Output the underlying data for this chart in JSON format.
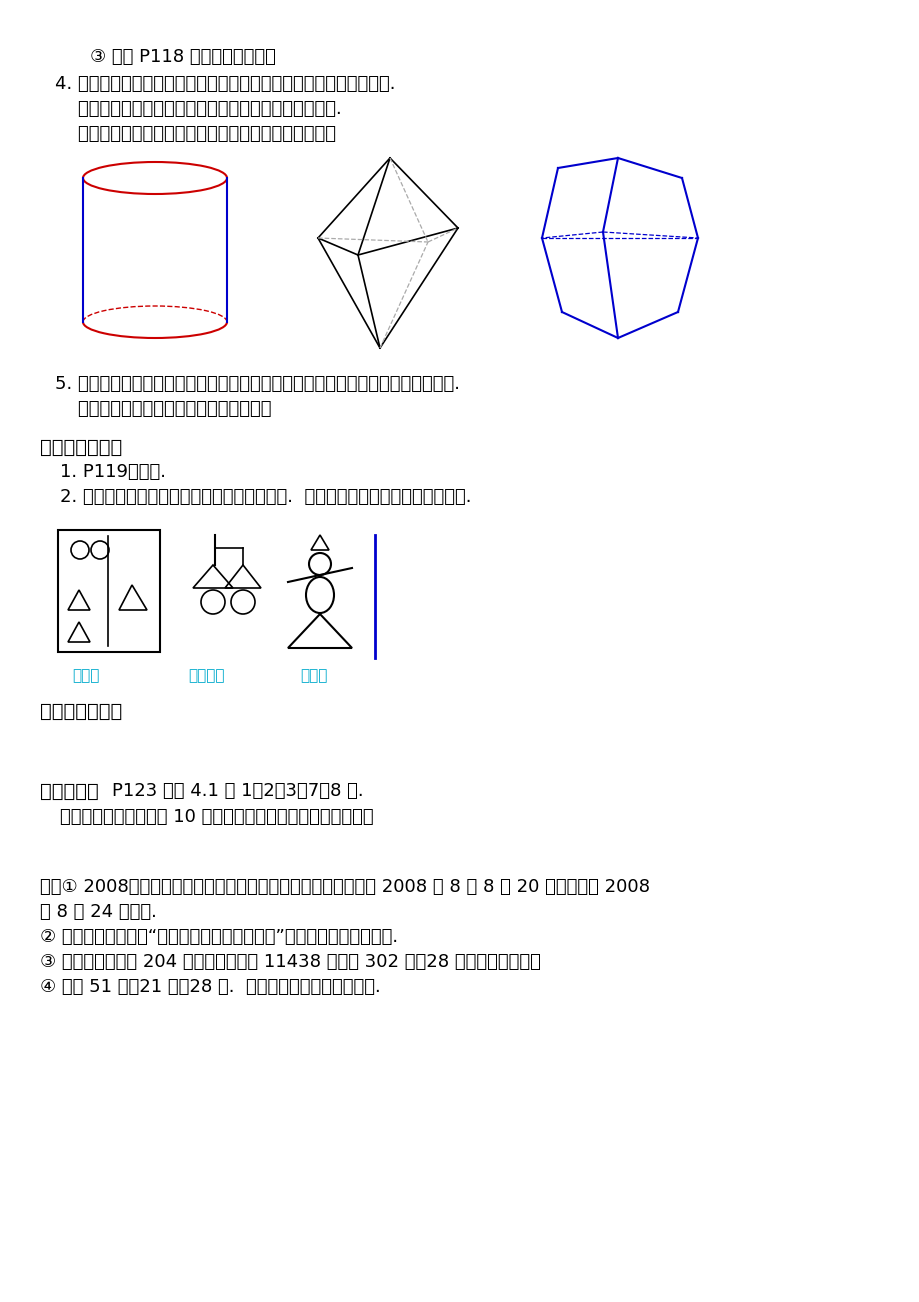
{
  "bg_color": "#ffffff",
  "text_color": "#000000",
  "blue_color": "#0000CD",
  "cyan_label_color": "#00AACC",
  "red_color": "#CC0000",
  "line1": "③ 完成 P118 思考的问题（下）",
  "line2": "4. 立体图形与平面图形是两类不同的几何图形，但他们是互相联系的.",
  "line3": "    任何一个立体图形图形是由一个或几个平面图形围成的.",
  "line4": "    看看下面的几个立体图形是由怎样的平面图形围成的？",
  "line5": "5. 下面都是生活中的物体：粉笔盒、茶杯、文具盒、砖、铅垃仪、乒乒球、黑板面.",
  "line6": "    你能说出类似于这些物体的几何图形吗？",
  "section3": "三、知识应用：",
  "s3_1": "1. P119练习题.",
  "s3_2": "2. 用两条线段、两个三角形、两个圆拼成图案.  试着画几个，并取一个恰当的名字.",
  "section4": "四、学习小结：",
  "section5_title": "五、作业：",
  "section5_content": "P123 习题 4.1 第 1、2、3、7、8 题.",
  "section5_sub": "（有条件的同学可准备 10 个正方体形状的积木，下课时备用）",
  "appendix1": "附：① 2008年北京奥运会即第二十九届夏季奥林匹克运动会，于 2008 年 8 月 8 日 20 时开幕，于 2008",
  "appendix1b": "年 8 月 24 日闭幕.",
  "appendix2": "② 本届奥运会口号为“同一个世界，同一个梦想”，主办城市是中国北京.",
  "appendix3": "③ 参赛国家及地区 204 个，参赛运动员 11438 人，设 302 项（28 种运动）比赛项目",
  "appendix4": "④ 中国 51 金，21 银，28 铜.  金牌数第一，奖牌总数第二.",
  "robot_label": "机器人",
  "lamp_label": "两盏电灯",
  "scarecrow_label": "稾草人"
}
